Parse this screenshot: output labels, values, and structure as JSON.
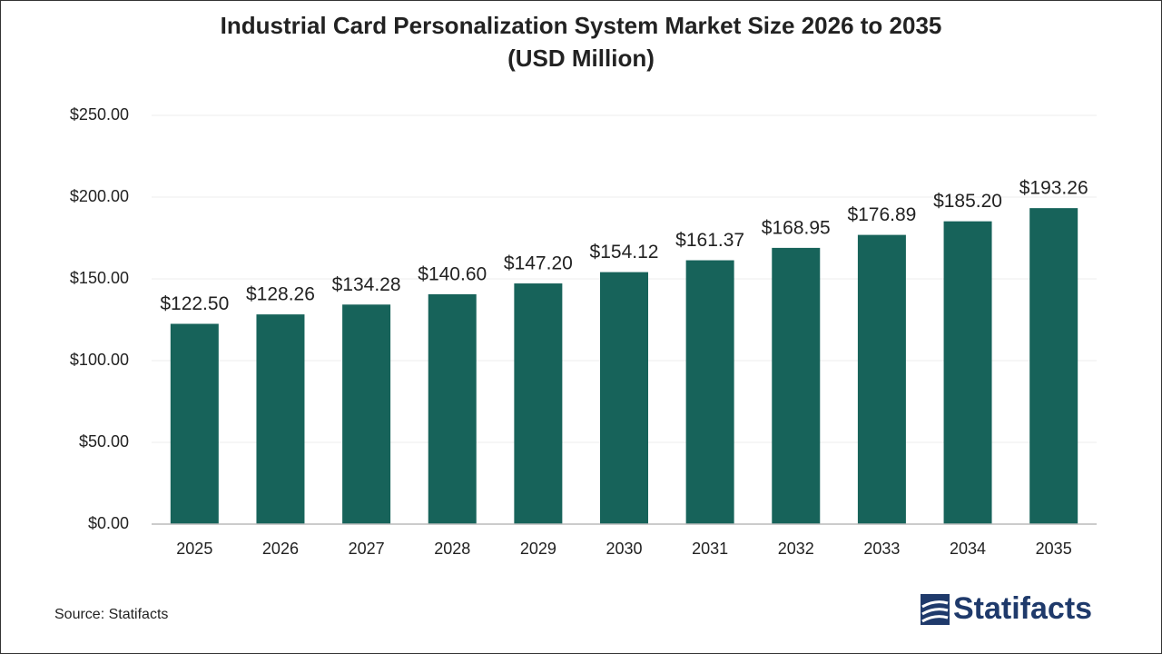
{
  "chart_data": {
    "type": "bar",
    "title": [
      "Industrial Card Personalization System Market Size 2026 to 2035",
      "(USD Million)"
    ],
    "categories": [
      "2025",
      "2026",
      "2027",
      "2028",
      "2029",
      "2030",
      "2031",
      "2032",
      "2033",
      "2034",
      "2035"
    ],
    "values": [
      122.5,
      128.26,
      134.28,
      140.6,
      147.2,
      154.12,
      161.37,
      168.95,
      176.89,
      185.2,
      193.26
    ],
    "value_labels": [
      "$122.50",
      "$128.26",
      "$134.28",
      "$140.60",
      "$147.20",
      "$154.12",
      "$161.37",
      "$168.95",
      "$176.89",
      "$185.20",
      "$193.26"
    ],
    "color": "#17635a",
    "ylim": [
      0,
      250
    ],
    "yticks": [
      {
        "value": 0,
        "label": "$0.00"
      },
      {
        "value": 50,
        "label": "$50.00"
      },
      {
        "value": 100,
        "label": "$100.00"
      },
      {
        "value": 150,
        "label": "$150.00"
      },
      {
        "value": 200,
        "label": "$200.00"
      },
      {
        "value": 250,
        "label": "$250.00"
      }
    ],
    "grid": true,
    "source": "Source: Statifacts",
    "logo_text": "Statifacts"
  }
}
